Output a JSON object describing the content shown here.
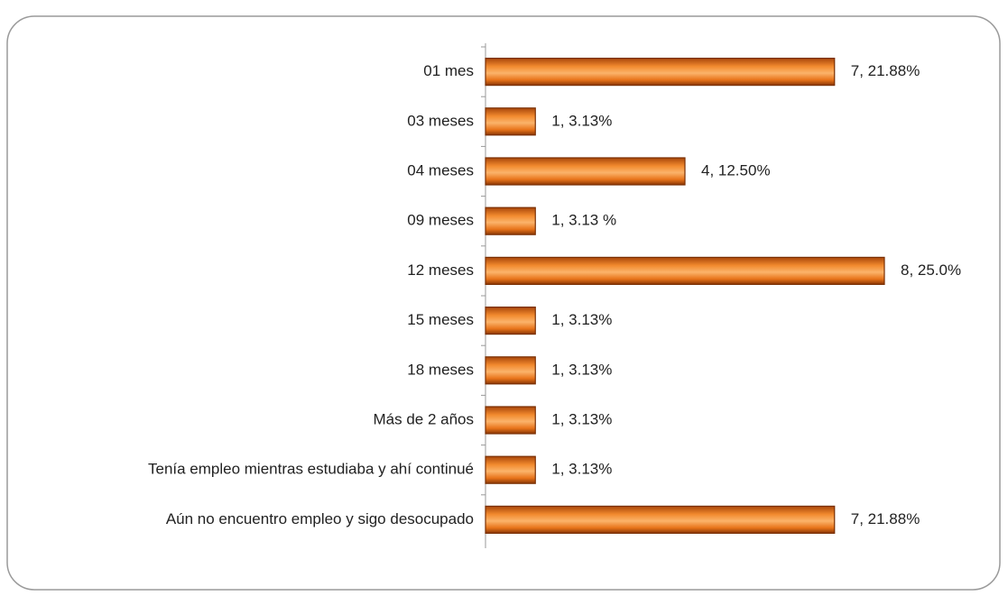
{
  "chart_data": {
    "type": "bar",
    "orientation": "horizontal",
    "categories": [
      "01 mes",
      "03 meses",
      "04 meses",
      "09 meses",
      "12 meses",
      "15 meses",
      "18 meses",
      "Más de 2 años",
      "Tenía empleo mientras estudiaba y ahí continué",
      "Aún no encuentro empleo y sigo desocupado"
    ],
    "values": [
      7,
      1,
      4,
      1,
      8,
      1,
      1,
      1,
      1,
      7
    ],
    "value_labels": [
      "7, 21.88%",
      "1, 3.13%",
      "4, 12.50%",
      "1, 3.13 %",
      "8, 25.0%",
      "1, 3.13%",
      "1, 3.13%",
      "1, 3.13%",
      "1, 3.13%",
      "7, 21.88%"
    ],
    "color": "#e8741a",
    "xlim": [
      0,
      8
    ]
  }
}
